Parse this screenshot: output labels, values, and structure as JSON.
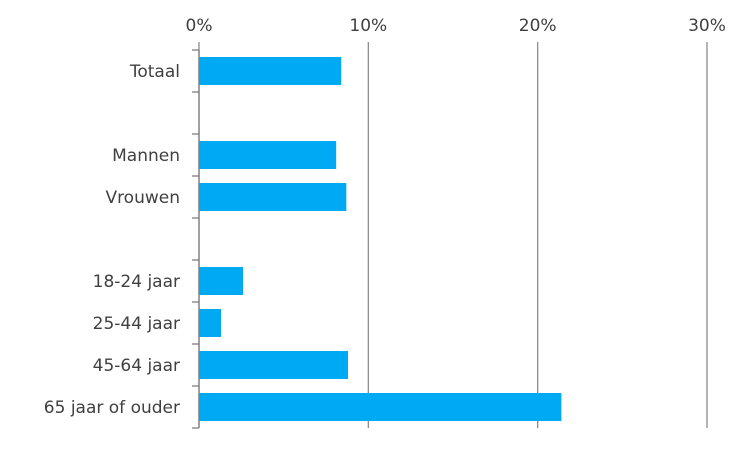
{
  "chart_data": {
    "type": "bar",
    "orientation": "horizontal",
    "categories": [
      "Totaal",
      "",
      "Mannen",
      "Vrouwen",
      "",
      "18-24 jaar",
      "25-44 jaar",
      "45-64 jaar",
      "65 jaar of ouder"
    ],
    "values": [
      8.4,
      null,
      8.1,
      8.7,
      null,
      2.6,
      1.3,
      8.8,
      21.4
    ],
    "xlim": [
      0,
      30
    ],
    "xticks": [
      0,
      10,
      20,
      30
    ],
    "tick_labels": [
      "0%",
      "10%",
      "20%",
      "30%"
    ],
    "x_axis_position": "top",
    "grid": true,
    "bar_color": "#00a9f4",
    "grid_color": "#8c8c8c",
    "axis_color": "#7f7f7f",
    "text_color": "#404040",
    "title": "",
    "xlabel": "",
    "ylabel": ""
  }
}
